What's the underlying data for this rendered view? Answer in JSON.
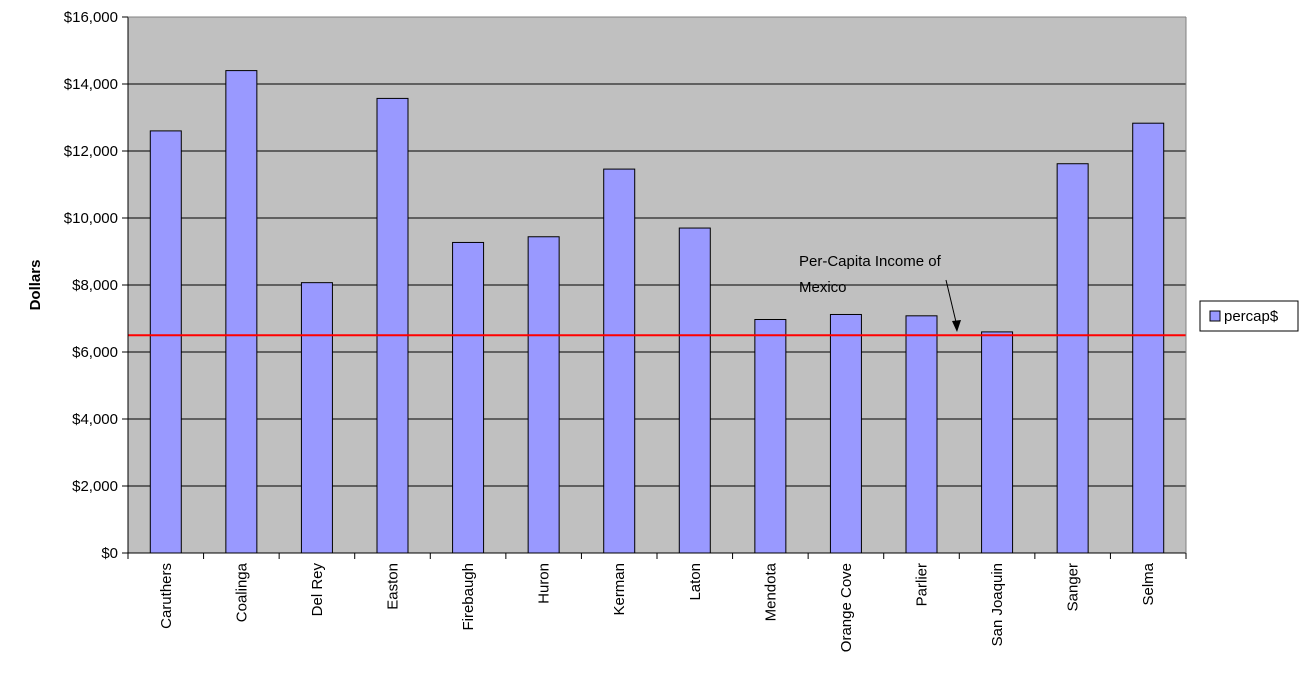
{
  "chart_data": {
    "type": "bar",
    "categories": [
      "Caruthers",
      "Coalinga",
      "Del Rey",
      "Easton",
      "Firebaugh",
      "Huron",
      "Kerman",
      "Laton",
      "Mendota",
      "Orange Cove",
      "Parlier",
      "San Joaquin",
      "Sanger",
      "Selma"
    ],
    "series": [
      {
        "name": "percap$",
        "values": [
          12600,
          14400,
          8070,
          13570,
          9270,
          9440,
          11460,
          9700,
          6970,
          7120,
          7080,
          6600,
          11620,
          12830
        ]
      }
    ],
    "ylabel": "Dollars",
    "xlabel": "",
    "ylim": [
      0,
      16000
    ],
    "yticks": [
      "$0",
      "$2,000",
      "$4,000",
      "$6,000",
      "$8,000",
      "$10,000",
      "$12,000",
      "$14,000",
      "$16,000"
    ],
    "grid": true,
    "legend": "right",
    "reference_line": {
      "value": 6500,
      "color": "#ff0000"
    },
    "annotation": {
      "text_line1": "Per-Capita Income of",
      "text_line2": "Mexico"
    },
    "colors": {
      "bar_fill": "#9999ff",
      "bar_stroke": "#000000",
      "plot_bg": "#c0c0c0",
      "gridline": "#000000",
      "reference_line": "#ff0000"
    }
  }
}
